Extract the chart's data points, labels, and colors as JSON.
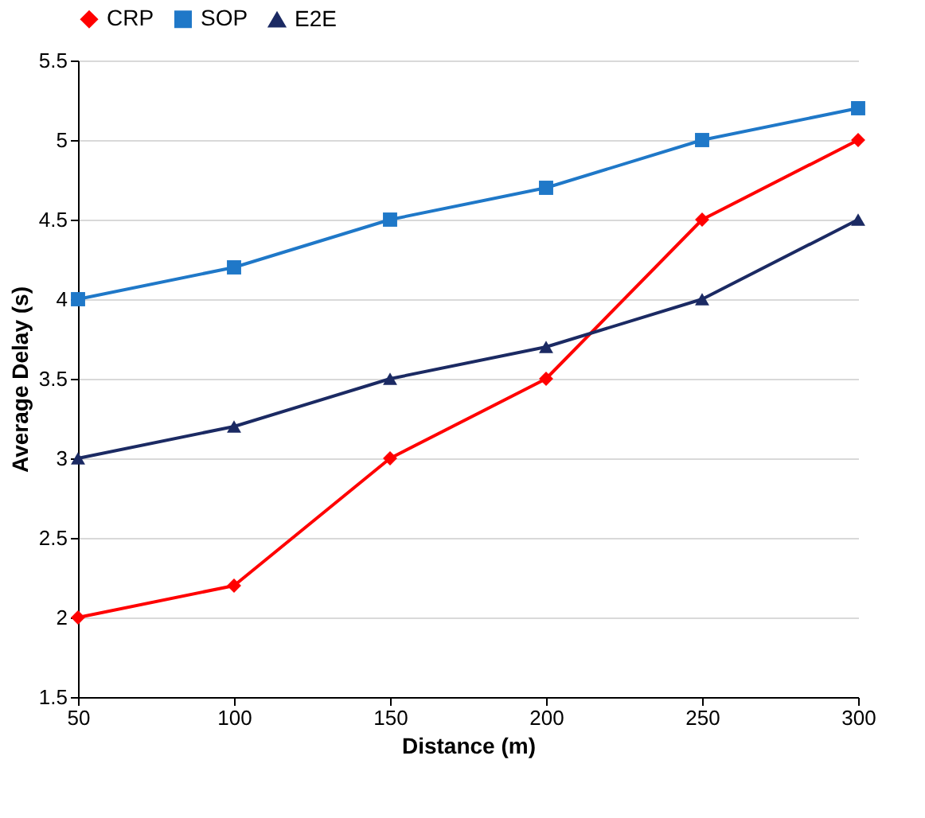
{
  "chart_data": {
    "type": "line",
    "xlabel": "Distance (m)",
    "ylabel": "Average Delay (s)",
    "x": [
      50,
      100,
      150,
      200,
      250,
      300
    ],
    "series": [
      {
        "name": "CRP",
        "color": "#ff0000",
        "marker": "diamond",
        "values": [
          2,
          2.2,
          3,
          3.5,
          4.5,
          5
        ]
      },
      {
        "name": "SOP",
        "color": "#1f78c8",
        "marker": "square",
        "values": [
          4,
          4.2,
          4.5,
          4.7,
          5,
          5.2
        ]
      },
      {
        "name": "E2E",
        "color": "#1b2a63",
        "marker": "triangle",
        "values": [
          3,
          3.2,
          3.5,
          3.7,
          4,
          4.5
        ]
      }
    ],
    "xlim": [
      50,
      300
    ],
    "xticks": [
      50,
      100,
      150,
      200,
      250,
      300
    ],
    "ylim": [
      1.5,
      5.5
    ],
    "yticks": [
      1.5,
      2,
      2.5,
      3,
      3.5,
      4,
      4.5,
      5,
      5.5
    ],
    "grid": "y",
    "legend": "top",
    "line_style": "solid"
  }
}
